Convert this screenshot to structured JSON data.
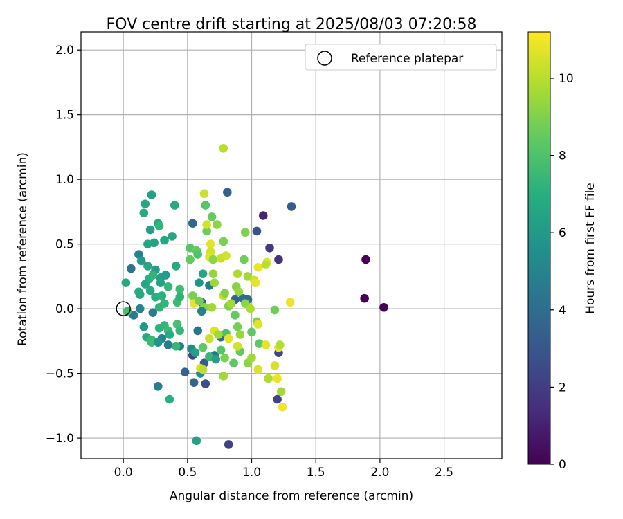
{
  "chart_data": {
    "type": "scatter",
    "title": "FOV centre drift starting at 2025/08/03 07:20:58",
    "xlabel": "Angular distance from reference (arcmin)",
    "ylabel": "Rotation from reference (arcmin)",
    "xlim": [
      -0.33,
      2.95
    ],
    "ylim": [
      -1.16,
      2.14
    ],
    "xticks": [
      "0.0",
      "0.5",
      "1.0",
      "1.5",
      "2.0",
      "2.5"
    ],
    "xtick_values": [
      0.0,
      0.5,
      1.0,
      1.5,
      2.0,
      2.5
    ],
    "yticks": [
      "−1.0",
      "−0.5",
      "0.0",
      "0.5",
      "1.0",
      "1.5",
      "2.0"
    ],
    "ytick_values": [
      -1.0,
      -0.5,
      0.0,
      0.5,
      1.0,
      1.5,
      2.0
    ],
    "grid": true,
    "legend": {
      "placement": "top-right",
      "entries": [
        "Reference platepar"
      ]
    },
    "reference_point": {
      "x": 0.0,
      "y": 0.0
    },
    "colorbar": {
      "label": "Hours from first FF file",
      "range": [
        0,
        11.2
      ],
      "ticks": [
        "0",
        "2",
        "4",
        "6",
        "8",
        "10"
      ],
      "tick_values": [
        0,
        2,
        4,
        6,
        8,
        10
      ],
      "colormap": "viridis"
    },
    "points": [
      {
        "x": 1.89,
        "y": 0.38,
        "h": 0.1
      },
      {
        "x": 1.88,
        "y": 0.08,
        "h": 0.1
      },
      {
        "x": 2.03,
        "y": 0.01,
        "h": 0.1
      },
      {
        "x": 1.09,
        "y": 0.72,
        "h": 1.2
      },
      {
        "x": 1.14,
        "y": 0.47,
        "h": 1.8
      },
      {
        "x": 1.21,
        "y": 0.38,
        "h": 1.6
      },
      {
        "x": 1.2,
        "y": -0.7,
        "h": 2.2
      },
      {
        "x": 1.21,
        "y": -0.34,
        "h": 2.3
      },
      {
        "x": 0.82,
        "y": -1.05,
        "h": 2.2
      },
      {
        "x": 1.04,
        "y": 0.6,
        "h": 2.8
      },
      {
        "x": 1.31,
        "y": 0.79,
        "h": 3.2
      },
      {
        "x": 0.81,
        "y": 0.9,
        "h": 3.4
      },
      {
        "x": 0.54,
        "y": 0.66,
        "h": 3.7
      },
      {
        "x": 0.64,
        "y": -0.58,
        "h": 2.6
      },
      {
        "x": 0.54,
        "y": -0.36,
        "h": 2.4
      },
      {
        "x": 0.48,
        "y": -0.49,
        "h": 3.5
      },
      {
        "x": 0.55,
        "y": -0.57,
        "h": 3.6
      },
      {
        "x": 0.27,
        "y": -0.6,
        "h": 4.6
      },
      {
        "x": 0.12,
        "y": 0.42,
        "h": 4.9
      },
      {
        "x": 0.06,
        "y": 0.31,
        "h": 4.4
      },
      {
        "x": 0.08,
        "y": -0.05,
        "h": 4.5
      },
      {
        "x": 0.13,
        "y": 0.0,
        "h": 5.0
      },
      {
        "x": 0.23,
        "y": -0.03,
        "h": 4.6
      },
      {
        "x": 0.3,
        "y": -0.23,
        "h": 4.9
      },
      {
        "x": 0.35,
        "y": -0.28,
        "h": 4.7
      },
      {
        "x": 0.44,
        "y": -0.29,
        "h": 4.8
      },
      {
        "x": 0.58,
        "y": -0.17,
        "h": 4.3
      },
      {
        "x": 0.61,
        "y": 0.05,
        "h": 3.9
      },
      {
        "x": 0.67,
        "y": 0.18,
        "h": 4.6
      },
      {
        "x": 0.76,
        "y": -0.22,
        "h": 3.9
      },
      {
        "x": 0.87,
        "y": 0.07,
        "h": 3.6
      },
      {
        "x": 0.93,
        "y": 0.08,
        "h": 4.0
      },
      {
        "x": 0.97,
        "y": 0.07,
        "h": 3.9
      },
      {
        "x": 0.71,
        "y": -0.36,
        "h": 4.2
      },
      {
        "x": 0.63,
        "y": -0.42,
        "h": 3.3
      },
      {
        "x": 0.6,
        "y": -0.5,
        "h": 5.4
      },
      {
        "x": 0.57,
        "y": -1.02,
        "h": 6.4
      },
      {
        "x": 0.36,
        "y": -0.7,
        "h": 7.0
      },
      {
        "x": 0.22,
        "y": 0.88,
        "h": 6.3
      },
      {
        "x": 0.17,
        "y": 0.81,
        "h": 6.6
      },
      {
        "x": 0.16,
        "y": 0.74,
        "h": 6.7
      },
      {
        "x": 0.4,
        "y": 0.8,
        "h": 6.8
      },
      {
        "x": 0.21,
        "y": 0.61,
        "h": 6.3
      },
      {
        "x": 0.27,
        "y": 0.66,
        "h": 6.5
      },
      {
        "x": 0.28,
        "y": 0.64,
        "h": 7.3
      },
      {
        "x": 0.38,
        "y": 0.56,
        "h": 6.5
      },
      {
        "x": 0.32,
        "y": 0.53,
        "h": 6.6
      },
      {
        "x": 0.19,
        "y": 0.5,
        "h": 6.5
      },
      {
        "x": 0.24,
        "y": 0.51,
        "h": 6.4
      },
      {
        "x": 0.14,
        "y": 0.37,
        "h": 6.1
      },
      {
        "x": 0.19,
        "y": 0.33,
        "h": 6.6
      },
      {
        "x": 0.25,
        "y": 0.3,
        "h": 6.2
      },
      {
        "x": 0.29,
        "y": 0.24,
        "h": 6.3
      },
      {
        "x": 0.33,
        "y": 0.26,
        "h": 6.1
      },
      {
        "x": 0.41,
        "y": 0.33,
        "h": 6.8
      },
      {
        "x": 0.2,
        "y": 0.23,
        "h": 7.1
      },
      {
        "x": 0.23,
        "y": 0.26,
        "h": 7.3
      },
      {
        "x": 0.17,
        "y": 0.19,
        "h": 6.6
      },
      {
        "x": 0.12,
        "y": 0.13,
        "h": 6.9
      },
      {
        "x": 0.13,
        "y": 0.11,
        "h": 6.7
      },
      {
        "x": 0.21,
        "y": 0.14,
        "h": 6.8
      },
      {
        "x": 0.29,
        "y": 0.2,
        "h": 6.4
      },
      {
        "x": 0.35,
        "y": 0.17,
        "h": 7.4
      },
      {
        "x": 0.25,
        "y": 0.09,
        "h": 7.0
      },
      {
        "x": 0.3,
        "y": 0.1,
        "h": 7.1
      },
      {
        "x": 0.32,
        "y": 0.04,
        "h": 7.3
      },
      {
        "x": 0.42,
        "y": 0.05,
        "h": 7.6
      },
      {
        "x": 0.44,
        "y": 0.15,
        "h": 7.6
      },
      {
        "x": 0.44,
        "y": 0.09,
        "h": 7.2
      },
      {
        "x": 0.28,
        "y": 0.01,
        "h": 7.2
      },
      {
        "x": 0.02,
        "y": 0.2,
        "h": 6.6
      },
      {
        "x": 0.03,
        "y": -0.02,
        "h": 7.8
      },
      {
        "x": 0.16,
        "y": -0.14,
        "h": 6.0
      },
      {
        "x": 0.18,
        "y": -0.22,
        "h": 6.8
      },
      {
        "x": 0.22,
        "y": -0.24,
        "h": 7.4
      },
      {
        "x": 0.22,
        "y": -0.26,
        "h": 7.6
      },
      {
        "x": 0.27,
        "y": -0.26,
        "h": 5.8
      },
      {
        "x": 0.28,
        "y": -0.15,
        "h": 7.1
      },
      {
        "x": 0.32,
        "y": -0.13,
        "h": 7.3
      },
      {
        "x": 0.35,
        "y": -0.17,
        "h": 7.6
      },
      {
        "x": 0.36,
        "y": -0.2,
        "h": 6.9
      },
      {
        "x": 0.41,
        "y": -0.29,
        "h": 7.4
      },
      {
        "x": 0.42,
        "y": -0.12,
        "h": 7.9
      },
      {
        "x": 0.44,
        "y": -0.17,
        "h": 7.4
      },
      {
        "x": 0.53,
        "y": -0.31,
        "h": 5.3
      },
      {
        "x": 0.56,
        "y": -0.34,
        "h": 6.3
      },
      {
        "x": 0.62,
        "y": -0.3,
        "h": 8.4
      },
      {
        "x": 0.6,
        "y": -0.46,
        "h": 10.5
      },
      {
        "x": 0.67,
        "y": -0.37,
        "h": 7.4
      },
      {
        "x": 0.72,
        "y": -0.39,
        "h": 6.3
      },
      {
        "x": 0.76,
        "y": -0.32,
        "h": 8.2
      },
      {
        "x": 0.79,
        "y": -0.38,
        "h": 8.9
      },
      {
        "x": 0.8,
        "y": -0.19,
        "h": 8.0
      },
      {
        "x": 0.86,
        "y": -0.42,
        "h": 8.4
      },
      {
        "x": 0.89,
        "y": -0.14,
        "h": 8.8
      },
      {
        "x": 0.91,
        "y": -0.33,
        "h": 8.5
      },
      {
        "x": 0.91,
        "y": -0.2,
        "h": 9.4
      },
      {
        "x": 0.78,
        "y": -0.52,
        "h": 9.6
      },
      {
        "x": 0.97,
        "y": -0.42,
        "h": 9.2
      },
      {
        "x": 1.0,
        "y": -0.38,
        "h": 9.6
      },
      {
        "x": 1.0,
        "y": -0.18,
        "h": 8.4
      },
      {
        "x": 1.06,
        "y": -0.27,
        "h": 8.4
      },
      {
        "x": 1.05,
        "y": -0.47,
        "h": 10.6
      },
      {
        "x": 1.11,
        "y": -0.28,
        "h": 10.8
      },
      {
        "x": 1.13,
        "y": -0.54,
        "h": 9.8
      },
      {
        "x": 1.18,
        "y": -0.44,
        "h": 10.5
      },
      {
        "x": 1.21,
        "y": -0.3,
        "h": 10.8
      },
      {
        "x": 1.22,
        "y": -0.28,
        "h": 9.9
      },
      {
        "x": 1.23,
        "y": -0.64,
        "h": 9.6
      },
      {
        "x": 1.24,
        "y": -0.76,
        "h": 11.0
      },
      {
        "x": 1.2,
        "y": -0.54,
        "h": 10.9
      },
      {
        "x": 0.52,
        "y": 0.47,
        "h": 8.2
      },
      {
        "x": 0.52,
        "y": 0.38,
        "h": 8.5
      },
      {
        "x": 0.57,
        "y": 0.45,
        "h": 8.5
      },
      {
        "x": 0.58,
        "y": 0.42,
        "h": 8.0
      },
      {
        "x": 0.65,
        "y": 0.6,
        "h": 8.7
      },
      {
        "x": 0.64,
        "y": 0.8,
        "h": 8.2
      },
      {
        "x": 0.63,
        "y": 0.89,
        "h": 10.3
      },
      {
        "x": 0.69,
        "y": 0.71,
        "h": 8.5
      },
      {
        "x": 0.73,
        "y": 0.65,
        "h": 9.2
      },
      {
        "x": 0.65,
        "y": 0.65,
        "h": 10.5
      },
      {
        "x": 0.68,
        "y": 0.5,
        "h": 10.8
      },
      {
        "x": 0.68,
        "y": 0.44,
        "h": 10.4
      },
      {
        "x": 0.67,
        "y": 0.4,
        "h": 10.7
      },
      {
        "x": 0.7,
        "y": 0.38,
        "h": 9.2
      },
      {
        "x": 0.76,
        "y": 0.39,
        "h": 10.2
      },
      {
        "x": 0.78,
        "y": 0.52,
        "h": 8.9
      },
      {
        "x": 0.78,
        "y": 1.24,
        "h": 10.0
      },
      {
        "x": 0.8,
        "y": 0.41,
        "h": 10.4
      },
      {
        "x": 0.95,
        "y": 0.59,
        "h": 9.0
      },
      {
        "x": 0.94,
        "y": 0.38,
        "h": 8.7
      },
      {
        "x": 0.89,
        "y": 0.27,
        "h": 9.8
      },
      {
        "x": 0.88,
        "y": 0.17,
        "h": 9.1
      },
      {
        "x": 0.97,
        "y": 0.25,
        "h": 9.6
      },
      {
        "x": 1.02,
        "y": 0.22,
        "h": 10.3
      },
      {
        "x": 1.03,
        "y": 0.2,
        "h": 10.8
      },
      {
        "x": 1.05,
        "y": 0.32,
        "h": 10.9
      },
      {
        "x": 1.12,
        "y": 0.36,
        "h": 10.7
      },
      {
        "x": 1.11,
        "y": 0.34,
        "h": 10.0
      },
      {
        "x": 1.3,
        "y": 0.05,
        "h": 10.9
      },
      {
        "x": 1.18,
        "y": -0.01,
        "h": 8.7
      },
      {
        "x": 0.54,
        "y": 0.1,
        "h": 8.9
      },
      {
        "x": 0.55,
        "y": 0.04,
        "h": 10.8
      },
      {
        "x": 0.59,
        "y": 0.06,
        "h": 8.8
      },
      {
        "x": 0.63,
        "y": 0.01,
        "h": 9.2
      },
      {
        "x": 0.69,
        "y": 0.01,
        "h": 9.6
      },
      {
        "x": 0.71,
        "y": 0.2,
        "h": 9.5
      },
      {
        "x": 0.7,
        "y": 0.27,
        "h": 9.3
      },
      {
        "x": 0.78,
        "y": 0.1,
        "h": 10.2
      },
      {
        "x": 0.79,
        "y": 0.12,
        "h": 9.0
      },
      {
        "x": 0.82,
        "y": 0.02,
        "h": 8.9
      },
      {
        "x": 0.84,
        "y": 0.04,
        "h": 9.6
      },
      {
        "x": 0.87,
        "y": -0.05,
        "h": 8.5
      },
      {
        "x": 0.9,
        "y": 0.13,
        "h": 9.4
      },
      {
        "x": 0.95,
        "y": 0.04,
        "h": 9.2
      },
      {
        "x": 0.99,
        "y": 0.0,
        "h": 9.8
      },
      {
        "x": 1.04,
        "y": -0.1,
        "h": 9.0
      },
      {
        "x": 1.05,
        "y": -0.12,
        "h": 10.7
      },
      {
        "x": 0.67,
        "y": -0.23,
        "h": 10.3
      },
      {
        "x": 0.71,
        "y": -0.17,
        "h": 10.6
      },
      {
        "x": 0.74,
        "y": -0.2,
        "h": 9.6
      },
      {
        "x": 0.82,
        "y": -0.23,
        "h": 10.8
      },
      {
        "x": 0.89,
        "y": -0.29,
        "h": 10.4
      },
      {
        "x": 0.62,
        "y": -0.47,
        "h": 10.1
      },
      {
        "x": 0.61,
        "y": -0.02,
        "h": 4.8
      },
      {
        "x": 0.59,
        "y": 0.2,
        "h": 5.8
      },
      {
        "x": 0.62,
        "y": 0.27,
        "h": 6.5
      }
    ]
  }
}
